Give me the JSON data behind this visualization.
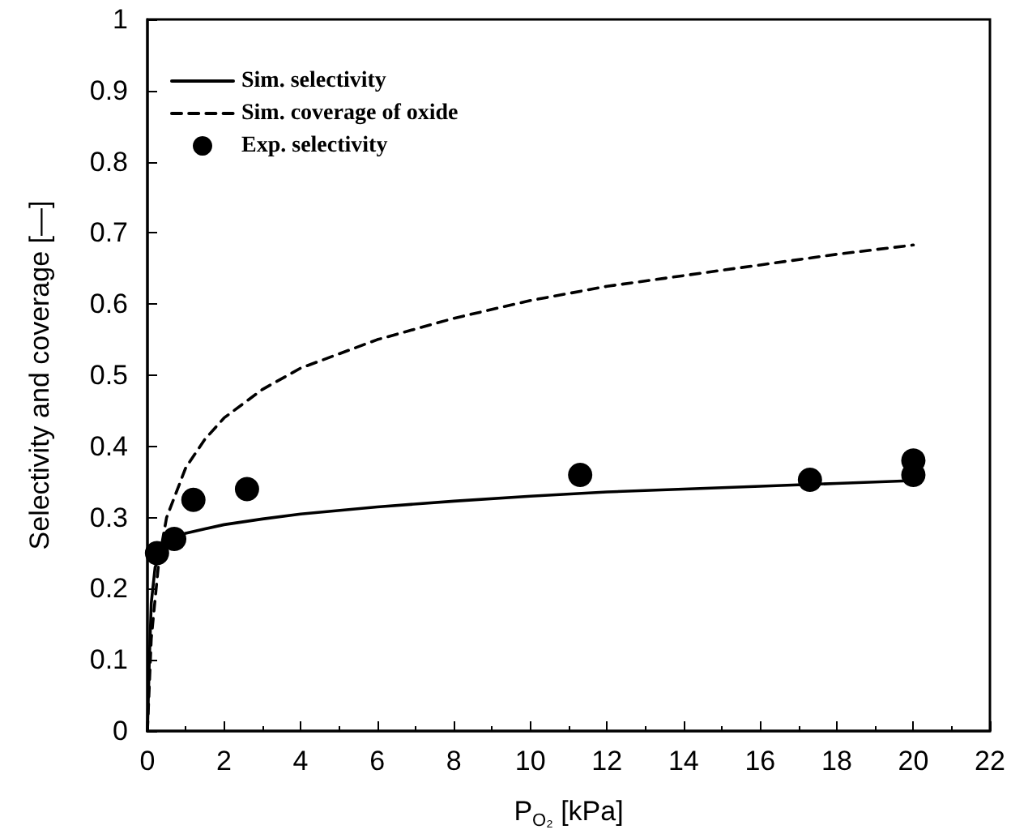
{
  "chart_data": {
    "type": "line",
    "xlabel": "P$_{O₂}$ [kPa]",
    "ylabel": "Selectivity and coverage [—]",
    "xlim": [
      0,
      22
    ],
    "xticks": [
      0,
      2,
      4,
      6,
      8,
      10,
      12,
      14,
      16,
      18,
      20,
      22
    ],
    "ylim": [
      0,
      1
    ],
    "yticks": [
      0,
      0.1,
      0.2,
      0.3,
      0.4,
      0.5,
      0.6,
      0.7,
      0.8,
      0.9,
      1
    ],
    "legend": "top left",
    "grid": false,
    "series": [
      {
        "name": "Sim. selectivity",
        "color": "#000000",
        "line_style": "solid",
        "marker": "none",
        "x": [
          0,
          0.05,
          0.1,
          0.2,
          0.4,
          0.7,
          1,
          2,
          3,
          4,
          6,
          8,
          10,
          12,
          14,
          16,
          18,
          20
        ],
        "values": [
          0,
          0.1,
          0.18,
          0.23,
          0.255,
          0.27,
          0.278,
          0.29,
          0.298,
          0.305,
          0.315,
          0.323,
          0.33,
          0.336,
          0.34,
          0.344,
          0.348,
          0.352
        ]
      },
      {
        "name": "Sim. coverage of oxide",
        "color": "#000000",
        "line_style": "dashed",
        "marker": "none",
        "x": [
          0,
          0.1,
          0.3,
          0.5,
          1,
          1.5,
          2,
          3,
          4,
          6,
          8,
          10,
          12,
          14,
          16,
          18,
          20
        ],
        "values": [
          0,
          0.13,
          0.24,
          0.3,
          0.37,
          0.41,
          0.44,
          0.48,
          0.51,
          0.55,
          0.58,
          0.605,
          0.625,
          0.64,
          0.655,
          0.67,
          0.683
        ]
      },
      {
        "name": "Exp. selectivity",
        "type": "scatter",
        "color": "#000000",
        "marker": "circle",
        "x": [
          0.25,
          0.7,
          1.2,
          2.6,
          11.3,
          17.3,
          20,
          20
        ],
        "values": [
          0.25,
          0.27,
          0.325,
          0.34,
          0.36,
          0.353,
          0.38,
          0.36
        ]
      }
    ]
  }
}
